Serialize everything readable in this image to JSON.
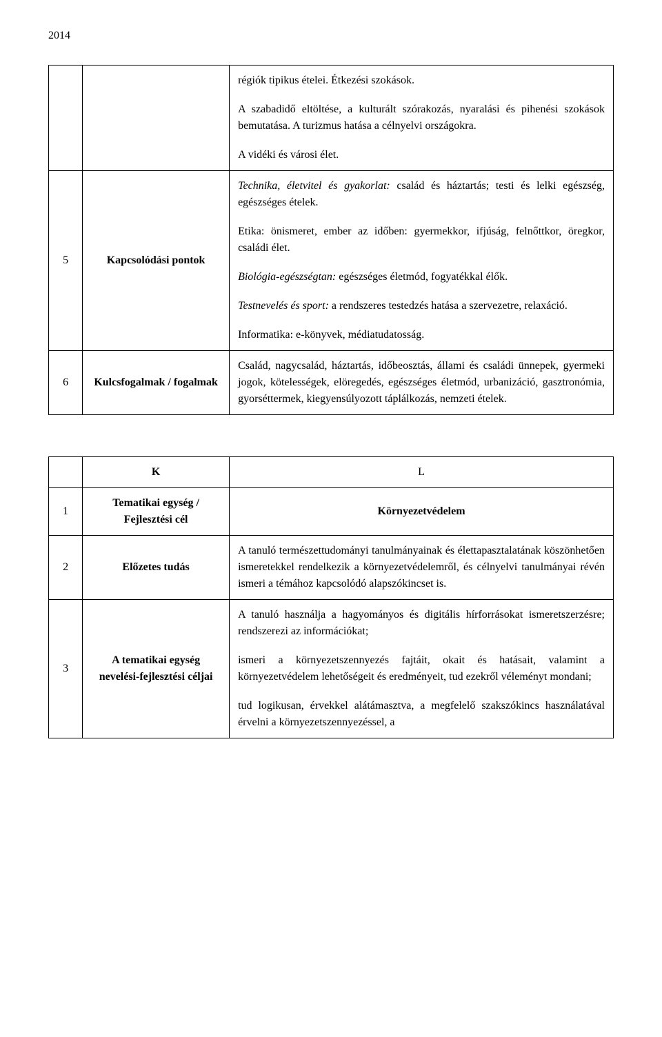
{
  "header": {
    "year": "2014"
  },
  "table1": {
    "row1": {
      "content": {
        "p1": "régiók tipikus ételei. Étkezési szokások.",
        "p2": "A szabadidő eltöltése, a kulturált szórakozás, nyaralási és pihenési szokások bemutatása. A turizmus hatása a célnyelvi országokra.",
        "p3": "A vidéki és városi élet."
      }
    },
    "row2": {
      "num": "5",
      "label": "Kapcsolódási pontok",
      "content": {
        "p1_prefix": "Technika, életvitel és gyakorlat:",
        "p1_rest": " család és háztartás; testi és lelki egészség, egészséges ételek.",
        "p2": "Etika: önismeret, ember az időben: gyermekkor, ifjúság, felnőttkor, öregkor, családi élet.",
        "p3_prefix": "Biológia-egészségtan:",
        "p3_rest": " egészséges életmód, fogyatékkal élők.",
        "p4_prefix": "Testnevelés és sport:",
        "p4_rest": " a rendszeres testedzés hatása a szervezetre, relaxáció.",
        "p5": "Informatika: e-könyvek, médiatudatosság."
      }
    },
    "row3": {
      "num": "6",
      "label": "Kulcsfogalmak / fogalmak",
      "content": "Család, nagycsalád, háztartás, időbeosztás, állami és családi ünnepek, gyermeki jogok, kötelességek, elöregedés, egészséges életmód, urbanizáció, gasztronómia, gyorséttermek, kiegyensúlyozott táplálkozás, nemzeti ételek."
    }
  },
  "table2": {
    "header": {
      "k": "K",
      "l": "L"
    },
    "row1": {
      "num": "1",
      "label_line1": "Tematikai egység /",
      "label_line2": "Fejlesztési cél",
      "content": "Környezetvédelem"
    },
    "row2": {
      "num": "2",
      "label": "Előzetes tudás",
      "content": "A tanuló természettudományi tanulmányainak és élettapasztalatának köszönhetően ismeretekkel rendelkezik a környezetvédelemről, és célnyelvi tanulmányai révén ismeri a témához kapcsolódó alapszókincset is."
    },
    "row3": {
      "num": "3",
      "label": "A tematikai egység nevelési-fejlesztési céljai",
      "content": {
        "p1": "A tanuló használja a hagyományos és digitális hírforrásokat ismeretszerzésre; rendszerezi az információkat;",
        "p2": "ismeri a környezetszennyezés fajtáit, okait és hatásait, valamint a környezetvédelem lehetőségeit és eredményeit, tud ezekről véleményt mondani;",
        "p3": "tud logikusan, érvekkel alátámasztva, a megfelelő szakszókincs használatával érvelni a környezetszennyezéssel, a"
      }
    }
  }
}
